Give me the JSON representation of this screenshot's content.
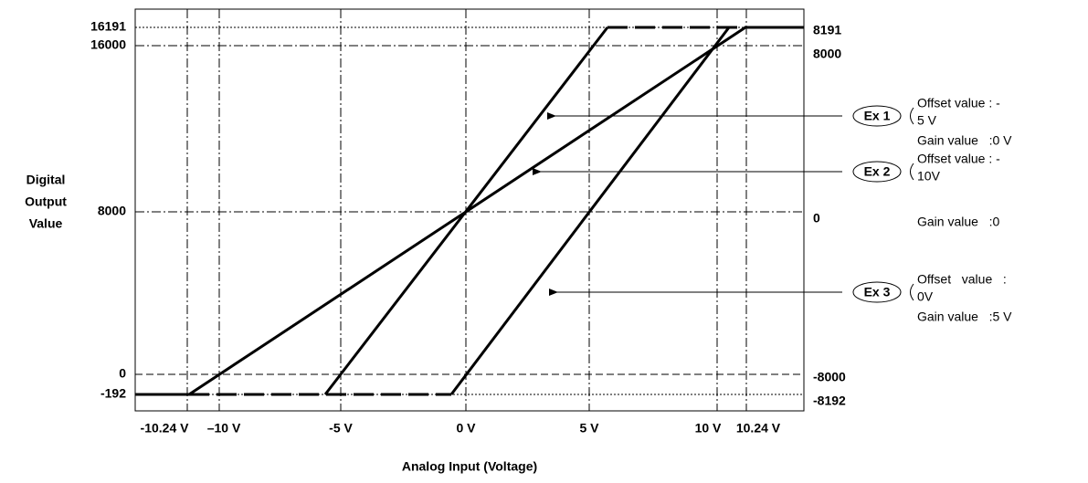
{
  "left_ticks": [
    "16191",
    "16000",
    "8000",
    "0",
    "-192"
  ],
  "right_ticks": [
    "8191",
    "8000",
    "0",
    "-8000",
    "-8192"
  ],
  "x_ticks": [
    "-10.24 V",
    "–10 V",
    "-5 V",
    "0 V",
    "5 V",
    "10 V",
    "10.24 V"
  ],
  "y_axis_label": [
    "Digital",
    "Output",
    "Value"
  ],
  "x_axis_label": "Analog Input (Voltage)",
  "callouts": [
    {
      "tag": "Ex 1",
      "offset": [
        "Offset value : -",
        "5 V"
      ],
      "gain": "Gain value   :0 V"
    },
    {
      "tag": "Ex 2",
      "offset": [
        "Offset value : -",
        "10V"
      ],
      "gain": "Gain value   :0"
    },
    {
      "tag": "Ex 3",
      "offset": [
        "Offset   value   :",
        "0V"
      ],
      "gain": "Gain value   :5 V"
    }
  ]
}
